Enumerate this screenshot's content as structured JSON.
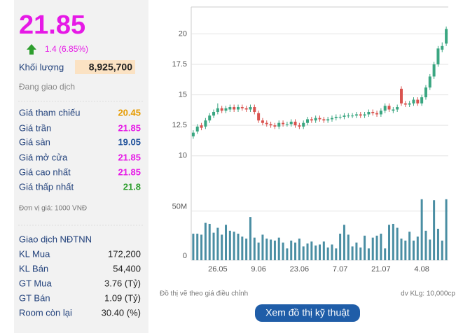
{
  "quote": {
    "price": "21.85",
    "change": "1.4 (6.85%)",
    "volume_label": "Khối lượng",
    "volume": "8,925,700",
    "status": "Đang giao dịch"
  },
  "price_rows": [
    {
      "label": "Giá tham chiếu",
      "value": "20.45"
    },
    {
      "label": "Giá trần",
      "value": "21.85"
    },
    {
      "label": "Giá sàn",
      "value": "19.05"
    },
    {
      "label": "Giá mở cửa",
      "value": "21.85"
    },
    {
      "label": "Giá cao nhất",
      "value": "21.85"
    },
    {
      "label": "Giá thấp nhất",
      "value": "21.8"
    }
  ],
  "unit_note": "Đơn vị giá: 1000 VNĐ",
  "foreign": {
    "title": "Giao dịch NĐTNN",
    "rows": [
      {
        "label": "KL Mua",
        "value": "172,200"
      },
      {
        "label": "KL Bán",
        "value": "54,400"
      },
      {
        "label": "GT Mua",
        "value": "3.76 (Tỷ)"
      },
      {
        "label": "GT Bán",
        "value": "1.09 (Tỷ)"
      },
      {
        "label": "Room còn lại",
        "value": "30.40 (%)"
      }
    ]
  },
  "chart_data": {
    "type": "candlestick",
    "categories": [
      null,
      null,
      null,
      null,
      null,
      null,
      "26.05",
      null,
      null,
      null,
      null,
      null,
      null,
      null,
      null,
      null,
      "9.06",
      null,
      null,
      null,
      null,
      null,
      null,
      null,
      null,
      null,
      "23.06",
      null,
      null,
      null,
      null,
      null,
      null,
      null,
      null,
      null,
      "7.07",
      null,
      null,
      null,
      null,
      null,
      null,
      null,
      null,
      null,
      "21.07",
      null,
      null,
      null,
      null,
      null,
      null,
      null,
      null,
      null,
      "4.08",
      null,
      null,
      null,
      null,
      null,
      null
    ],
    "open": [
      11.6,
      12.0,
      12.5,
      12.4,
      12.9,
      13.3,
      13.6,
      13.9,
      13.7,
      13.8,
      14.0,
      13.8,
      14.0,
      13.9,
      13.8,
      14.0,
      13.5,
      12.9,
      12.7,
      12.6,
      12.5,
      12.4,
      12.7,
      12.6,
      12.6,
      12.8,
      12.5,
      12.4,
      12.7,
      13.0,
      12.9,
      13.1,
      13.0,
      12.9,
      13.0,
      13.1,
      13.2,
      13.2,
      13.3,
      13.3,
      13.3,
      13.4,
      13.3,
      13.4,
      13.6,
      13.5,
      13.4,
      13.7,
      14.1,
      13.7,
      13.8,
      15.5,
      14.3,
      14.2,
      14.3,
      14.6,
      14.3,
      14.8,
      15.6,
      16.5,
      17.5,
      18.7,
      19.2
    ],
    "high": [
      12.1,
      12.6,
      12.7,
      13.1,
      13.5,
      13.8,
      14.3,
      14.1,
      14.1,
      14.2,
      14.2,
      14.2,
      14.2,
      14.1,
      14.2,
      14.2,
      13.7,
      13.1,
      12.9,
      12.8,
      12.7,
      12.9,
      12.9,
      12.8,
      13.0,
      13.0,
      12.7,
      12.9,
      13.2,
      13.2,
      13.3,
      13.3,
      13.2,
      13.2,
      13.3,
      13.4,
      13.4,
      13.5,
      13.5,
      13.5,
      13.6,
      13.6,
      13.6,
      13.8,
      13.8,
      13.7,
      13.9,
      14.3,
      14.3,
      14.0,
      14.2,
      15.7,
      14.5,
      14.5,
      14.8,
      14.8,
      15.0,
      15.8,
      16.7,
      17.7,
      19.0,
      19.3,
      20.6
    ],
    "low": [
      11.4,
      11.8,
      12.1,
      12.2,
      12.7,
      13.1,
      13.4,
      13.5,
      13.5,
      13.6,
      13.6,
      13.6,
      13.7,
      13.6,
      13.6,
      13.4,
      12.7,
      12.5,
      12.4,
      12.3,
      12.2,
      12.2,
      12.4,
      12.4,
      12.4,
      12.3,
      12.2,
      12.2,
      12.5,
      12.7,
      12.7,
      12.8,
      12.7,
      12.7,
      12.8,
      12.9,
      13.0,
      13.0,
      13.1,
      13.1,
      13.1,
      13.1,
      13.1,
      13.2,
      13.3,
      13.2,
      13.2,
      13.5,
      13.6,
      13.5,
      13.6,
      14.1,
      14.0,
      14.0,
      14.1,
      14.1,
      14.1,
      14.6,
      15.4,
      16.3,
      17.3,
      18.5,
      19.0
    ],
    "close": [
      11.9,
      12.4,
      12.3,
      12.9,
      13.3,
      13.6,
      13.9,
      13.7,
      13.9,
      14.0,
      13.8,
      14.0,
      13.9,
      13.8,
      14.0,
      13.6,
      12.9,
      12.7,
      12.6,
      12.5,
      12.4,
      12.7,
      12.6,
      12.6,
      12.8,
      12.5,
      12.4,
      12.7,
      13.0,
      12.9,
      13.1,
      13.0,
      12.9,
      13.0,
      13.1,
      13.2,
      13.2,
      13.3,
      13.3,
      13.3,
      13.4,
      13.3,
      13.4,
      13.6,
      13.5,
      13.4,
      13.7,
      14.1,
      13.8,
      13.8,
      14.0,
      14.3,
      14.2,
      14.3,
      14.6,
      14.3,
      14.8,
      15.6,
      16.5,
      17.5,
      18.8,
      19.0,
      20.4
    ],
    "volume": [
      27000000,
      27000000,
      26000000,
      38000000,
      37000000,
      28000000,
      33000000,
      26000000,
      36000000,
      30000000,
      29000000,
      27000000,
      24000000,
      22000000,
      44000000,
      23000000,
      18000000,
      26000000,
      22000000,
      21000000,
      20000000,
      23000000,
      18000000,
      12000000,
      20000000,
      18000000,
      22000000,
      14000000,
      17000000,
      19000000,
      15000000,
      16000000,
      19000000,
      13000000,
      16000000,
      12000000,
      27000000,
      36000000,
      26000000,
      14000000,
      18000000,
      13000000,
      25000000,
      12000000,
      23000000,
      25000000,
      27000000,
      12000000,
      36000000,
      37000000,
      33000000,
      22000000,
      20000000,
      29000000,
      20000000,
      24000000,
      62000000,
      30000000,
      21000000,
      61000000,
      32000000,
      20000000,
      62000000
    ],
    "up_color": "#3aa681",
    "down_color": "#d9534f",
    "volume_color": "#4a8ea3",
    "ylim": [
      9.7,
      22.2
    ],
    "yticks": [
      10,
      12.5,
      15,
      17.5,
      20
    ],
    "y2lim": [
      0,
      64000000
    ],
    "y2ticks": [
      0,
      {
        "value": 50000000,
        "label": "50M"
      }
    ],
    "grid": true
  },
  "chart_footer": {
    "left": "Đồ thị vẽ theo giá điều chỉnh",
    "right": "dv KLg: 10,000cp"
  },
  "button": {
    "label": "Xem đồ thị kỹ thuật"
  }
}
